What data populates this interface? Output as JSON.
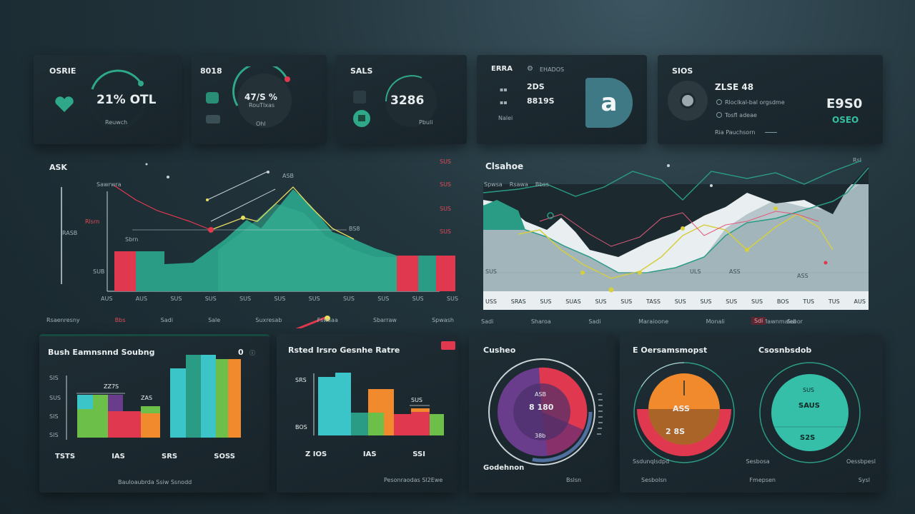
{
  "kpis": [
    {
      "title": "OSRIE",
      "value": "21% OTL",
      "caption": "Reuwch"
    },
    {
      "title": "8018",
      "value": "47/S %",
      "caption": "RouTlxas",
      "sub": "Ohl"
    },
    {
      "title": "SALS",
      "value": "3286",
      "caption": "Pbuli"
    },
    {
      "title": "ERRA",
      "title2": "EHADOS",
      "value1": "2DS",
      "value2": "8819S",
      "caption": "Nalei",
      "badge": "a"
    },
    {
      "title": "SIOS",
      "value": "ZLSE 48",
      "opt1": "Rloclkal-bal orgsdme",
      "opt2": "Tosfl adeae",
      "foot": "Ria Pauchsorn",
      "right_value": "E9S0",
      "right_sub": "OSEO"
    }
  ],
  "area_chart": {
    "title": "ASK",
    "left_labels": [
      "Sawrwra",
      "RASB",
      "Rlsrn",
      "SUB"
    ],
    "right_labels": [
      "SUS",
      "SUS",
      "SUS",
      "SUS"
    ],
    "annotations": [
      "Sbrn",
      "ASB",
      "BS8"
    ],
    "x_ticks": [
      "AUS",
      "AUS",
      "SUS",
      "SUS",
      "SUS",
      "SUS",
      "SUS",
      "SUS",
      "SUS",
      "SUS",
      "SUS"
    ],
    "legend": [
      "Rsaenresny",
      "Bbs",
      "Sadi",
      "Sale",
      "Suxresab",
      "Fswsaa",
      "Sbarraw",
      "Spwash"
    ]
  },
  "line_chart": {
    "title": "Clsahoe",
    "legend_top": [
      "Spwsa",
      "Rsawa",
      "Bbss"
    ],
    "mini_labels": [
      "SUS",
      "ULS",
      "ASS",
      "ASS"
    ],
    "x_ticks": [
      "USS",
      "SRAS",
      "SUS",
      "SUAS",
      "SUS",
      "SUS",
      "TASS",
      "SUS",
      "SUS",
      "SUS",
      "SUS",
      "BOS",
      "TUS",
      "TUS",
      "AUS"
    ],
    "legend": [
      "Sadi",
      "Sharoa",
      "Sadi",
      "Maraioone",
      "Monali",
      "Mawnmalebor",
      "Sdi",
      "Sul"
    ],
    "corner": "Rsl"
  },
  "bar1": {
    "title": "Bush Eamnsnnd Soubng",
    "y_ticks": [
      "SIS",
      "SUS",
      "SIS",
      "SIS"
    ],
    "value_labels": [
      "ZZ7S",
      "ZAS"
    ],
    "x_labels": [
      "TSTS",
      "IAS",
      "SRS",
      "SOSS"
    ],
    "footer": "Bauloaubrda Ssiw Ssnodd",
    "corner_num": "0"
  },
  "bar2": {
    "title": "Rsted Irsro Gesnhe Ratre",
    "y_ticks": [
      "SRS",
      "BOS"
    ],
    "value_labels": [
      "SUS"
    ],
    "x_labels": [
      "Z IOS",
      "IAS",
      "SSI"
    ],
    "footer": "Pesonraodas Sl2Ewe"
  },
  "donut1": {
    "title": "Cusheo",
    "val1": "ASB",
    "val2": "8 180",
    "val3": "38b",
    "foot_left": "Godehnon",
    "foot_right": "Bslsn"
  },
  "donut2": {
    "title": "E Oersamsmopst",
    "val1": "ASS",
    "val2": "2 8S",
    "legend": [
      "Ssdunqlsdpd",
      "Sesbosa",
      "Oessbpesl"
    ]
  },
  "donut3": {
    "title": "Csosnbsdob",
    "val1": "SUS",
    "val2": "SAUS",
    "val3": "S2S",
    "legend": [
      "Sesbolsn",
      "Fmepsen",
      "Sysl"
    ]
  },
  "colors": {
    "teal": "#2ea888",
    "red": "#e0394f",
    "orange": "#f08a2c",
    "green": "#6cc04a",
    "cyan": "#3cc5c8",
    "purple": "#6a3d8c"
  }
}
